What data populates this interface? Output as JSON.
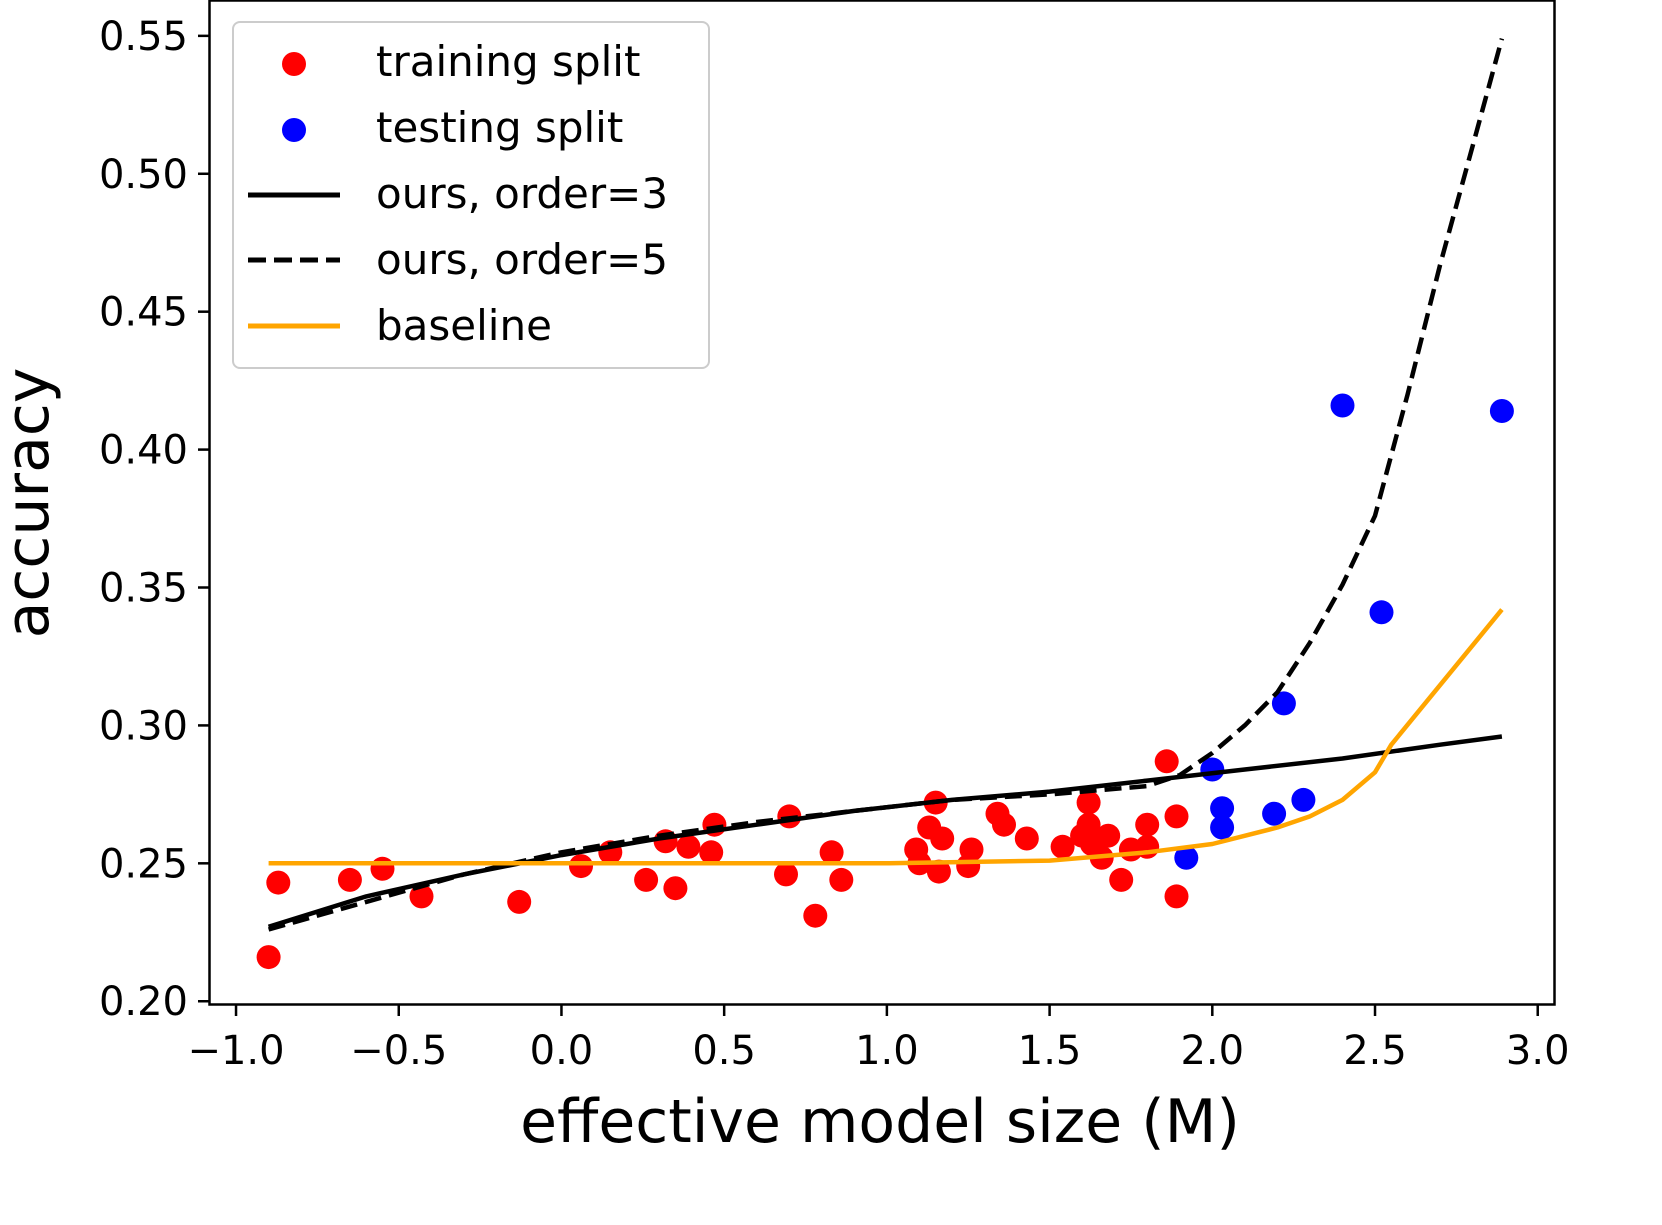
{
  "chart_data": {
    "type": "scatter",
    "xlabel": "effective model size (M)",
    "ylabel": "accuracy",
    "xlim": [
      -1.08,
      3.05
    ],
    "ylim": [
      0.199,
      0.563
    ],
    "xticks": [
      -1.0,
      -0.5,
      0.0,
      0.5,
      1.0,
      1.5,
      2.0,
      2.5,
      3.0
    ],
    "xtick_labels": [
      "−1.0",
      "−0.5",
      "0.0",
      "0.5",
      "1.0",
      "1.5",
      "2.0",
      "2.5",
      "3.0"
    ],
    "yticks": [
      0.2,
      0.25,
      0.3,
      0.35,
      0.4,
      0.45,
      0.5,
      0.55
    ],
    "ytick_labels": [
      "0.20",
      "0.25",
      "0.30",
      "0.35",
      "0.40",
      "0.45",
      "0.50",
      "0.55"
    ],
    "legend_position": "top-left",
    "legend": [
      {
        "label": "training split",
        "marker": "dot",
        "color": "#ff0000"
      },
      {
        "label": "testing split",
        "marker": "dot",
        "color": "#0000ff"
      },
      {
        "label": "ours, order=3",
        "marker": "solid",
        "color": "#000000"
      },
      {
        "label": "ours, order=5",
        "marker": "dashed",
        "color": "#000000"
      },
      {
        "label": "baseline",
        "marker": "solid",
        "color": "#ffa500"
      }
    ],
    "series": [
      {
        "name": "training split",
        "kind": "scatter",
        "color": "#ff0000",
        "points": [
          [
            -0.9,
            0.216
          ],
          [
            -0.87,
            0.243
          ],
          [
            -0.65,
            0.244
          ],
          [
            -0.55,
            0.248
          ],
          [
            -0.43,
            0.238
          ],
          [
            -0.13,
            0.236
          ],
          [
            0.06,
            0.249
          ],
          [
            0.15,
            0.254
          ],
          [
            0.26,
            0.244
          ],
          [
            0.32,
            0.258
          ],
          [
            0.35,
            0.241
          ],
          [
            0.39,
            0.256
          ],
          [
            0.46,
            0.254
          ],
          [
            0.47,
            0.264
          ],
          [
            0.69,
            0.246
          ],
          [
            0.7,
            0.267
          ],
          [
            0.78,
            0.231
          ],
          [
            0.83,
            0.254
          ],
          [
            0.86,
            0.244
          ],
          [
            1.09,
            0.255
          ],
          [
            1.1,
            0.25
          ],
          [
            1.13,
            0.263
          ],
          [
            1.15,
            0.272
          ],
          [
            1.16,
            0.247
          ],
          [
            1.17,
            0.259
          ],
          [
            1.25,
            0.249
          ],
          [
            1.26,
            0.255
          ],
          [
            1.34,
            0.268
          ],
          [
            1.36,
            0.264
          ],
          [
            1.43,
            0.259
          ],
          [
            1.54,
            0.256
          ],
          [
            1.6,
            0.26
          ],
          [
            1.62,
            0.264
          ],
          [
            1.62,
            0.272
          ],
          [
            1.63,
            0.257
          ],
          [
            1.66,
            0.252
          ],
          [
            1.68,
            0.26
          ],
          [
            1.72,
            0.244
          ],
          [
            1.75,
            0.255
          ],
          [
            1.8,
            0.256
          ],
          [
            1.8,
            0.264
          ],
          [
            1.86,
            0.287
          ],
          [
            1.89,
            0.267
          ],
          [
            1.89,
            0.238
          ]
        ]
      },
      {
        "name": "testing split",
        "kind": "scatter",
        "color": "#0000ff",
        "points": [
          [
            1.92,
            0.252
          ],
          [
            2.0,
            0.284
          ],
          [
            2.03,
            0.27
          ],
          [
            2.03,
            0.263
          ],
          [
            2.19,
            0.268
          ],
          [
            2.22,
            0.308
          ],
          [
            2.28,
            0.273
          ],
          [
            2.4,
            0.416
          ],
          [
            2.52,
            0.341
          ],
          [
            2.89,
            0.414
          ]
        ]
      },
      {
        "name": "ours, order=3",
        "kind": "line",
        "style": "solid",
        "color": "#000000",
        "points": [
          [
            -0.9,
            0.227
          ],
          [
            -0.6,
            0.238
          ],
          [
            -0.3,
            0.246
          ],
          [
            0.0,
            0.253
          ],
          [
            0.3,
            0.259
          ],
          [
            0.6,
            0.264
          ],
          [
            0.9,
            0.269
          ],
          [
            1.2,
            0.273
          ],
          [
            1.5,
            0.276
          ],
          [
            1.8,
            0.28
          ],
          [
            2.1,
            0.284
          ],
          [
            2.4,
            0.288
          ],
          [
            2.7,
            0.293
          ],
          [
            2.89,
            0.296
          ]
        ]
      },
      {
        "name": "ours, order=5",
        "kind": "line",
        "style": "dashed",
        "color": "#000000",
        "points": [
          [
            -0.9,
            0.226
          ],
          [
            -0.6,
            0.236
          ],
          [
            -0.3,
            0.246
          ],
          [
            0.0,
            0.254
          ],
          [
            0.3,
            0.26
          ],
          [
            0.6,
            0.265
          ],
          [
            0.9,
            0.269
          ],
          [
            1.2,
            0.273
          ],
          [
            1.5,
            0.275
          ],
          [
            1.8,
            0.278
          ],
          [
            1.9,
            0.282
          ],
          [
            2.0,
            0.29
          ],
          [
            2.1,
            0.3
          ],
          [
            2.2,
            0.312
          ],
          [
            2.3,
            0.33
          ],
          [
            2.4,
            0.351
          ],
          [
            2.5,
            0.376
          ],
          [
            2.6,
            0.42
          ],
          [
            2.7,
            0.467
          ],
          [
            2.8,
            0.51
          ],
          [
            2.89,
            0.549
          ]
        ]
      },
      {
        "name": "baseline",
        "kind": "line",
        "style": "solid",
        "color": "#ffa500",
        "points": [
          [
            -0.9,
            0.25
          ],
          [
            -0.5,
            0.25
          ],
          [
            0.0,
            0.25
          ],
          [
            0.5,
            0.25
          ],
          [
            1.0,
            0.25
          ],
          [
            1.5,
            0.251
          ],
          [
            1.8,
            0.254
          ],
          [
            2.0,
            0.257
          ],
          [
            2.2,
            0.263
          ],
          [
            2.3,
            0.267
          ],
          [
            2.4,
            0.273
          ],
          [
            2.5,
            0.283
          ],
          [
            2.55,
            0.293
          ],
          [
            2.89,
            0.342
          ]
        ]
      }
    ]
  }
}
